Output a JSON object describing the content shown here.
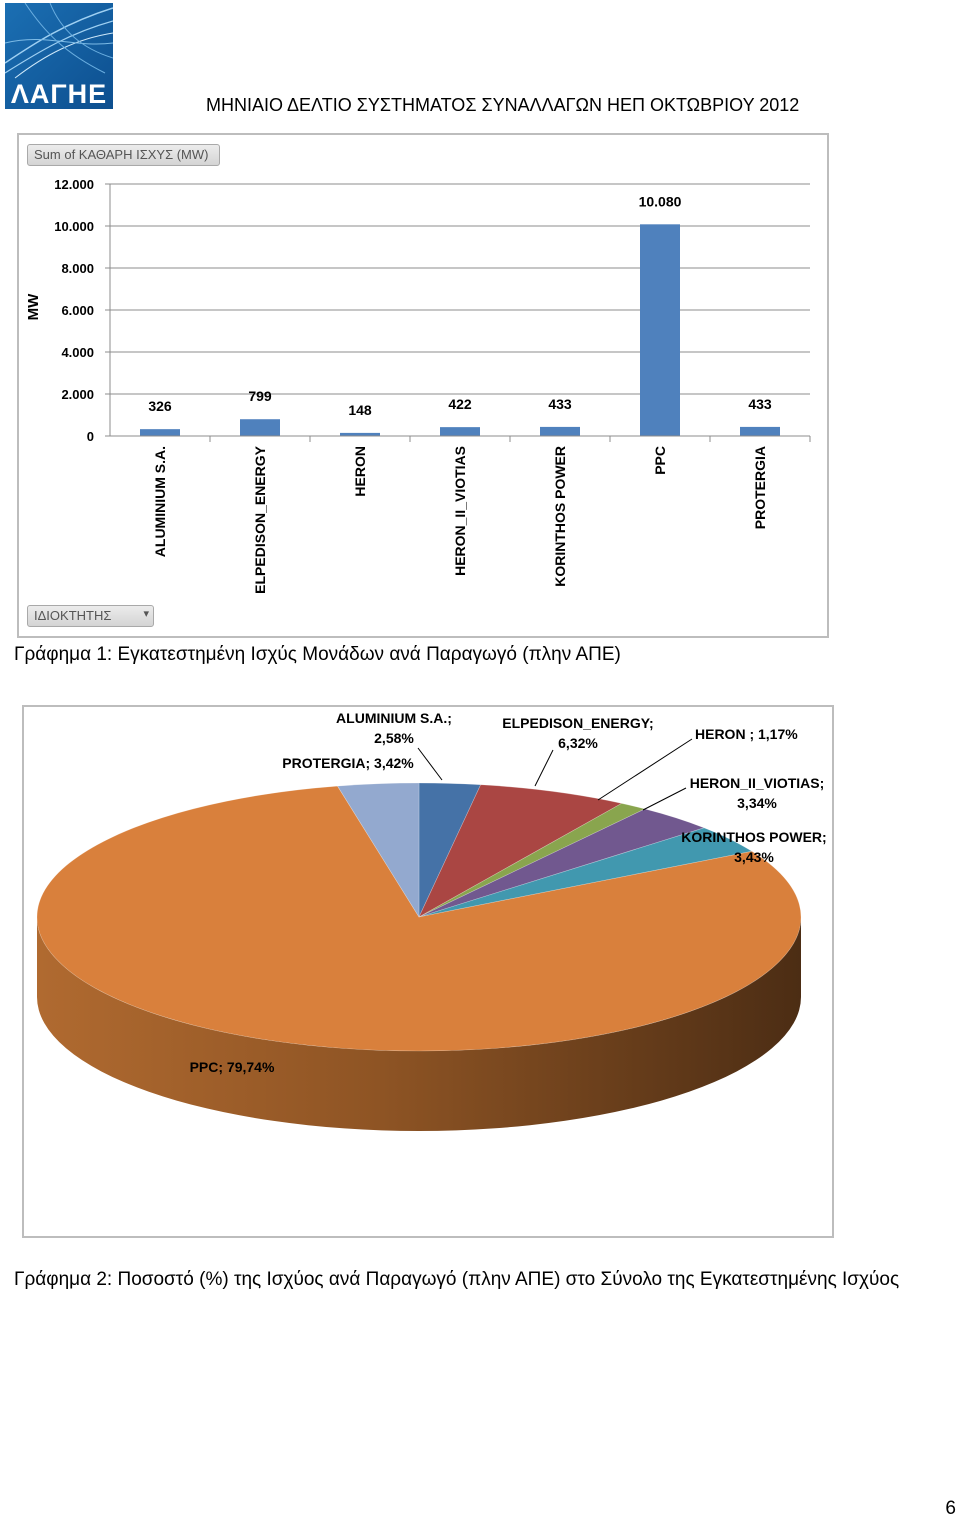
{
  "header": {
    "logo_text": "ΛΑΓΗΕ",
    "title": "ΜΗΝΙΑΙΟ ΔΕΛΤΙΟ ΣΥΣΤΗΜΑΤΟΣ ΣΥΝΑΛΛΑΓΩΝ ΗΕΠ ΟΚΤΩΒΡΙΟΥ 2012"
  },
  "bar_chart": {
    "field_button": "Sum of ΚΑΘΑΡΗ ΙΣΧΥΣ (MW)",
    "filter_button": "ΙΔΙΟΚΤΗΤΗΣ",
    "caption": "Γράφημα 1: Εγκατεστημένη Ισχύς Μονάδων ανά Παραγωγό (πλην ΑΠΕ)"
  },
  "pie_chart": {
    "caption": "Γράφημα 2: Ποσοστό (%) της Ισχύος ανά Παραγωγό (πλην ΑΠΕ) στο Σύνολο της Εγκατεστημένης Ισχύος"
  },
  "page_number": "6",
  "chart_data": [
    {
      "type": "bar",
      "ylabel": "MW",
      "xlabel": "",
      "ylim": [
        0,
        12000
      ],
      "yticks": [
        0,
        2000,
        4000,
        6000,
        8000,
        10000,
        12000
      ],
      "ytick_labels": [
        "0",
        "2.000",
        "4.000",
        "6.000",
        "8.000",
        "10.000",
        "12.000"
      ],
      "categories": [
        "ALUMINIUM S.A.",
        "ELPEDISON_ENERGY",
        "HERON",
        "HERON_II_VIOTIAS",
        "KORINTHOS POWER",
        "PPC",
        "PROTERGIA"
      ],
      "values": [
        326,
        799,
        148,
        422,
        433,
        10080,
        433
      ],
      "value_labels": [
        "326",
        "799",
        "148",
        "422",
        "433",
        "10.080",
        "433"
      ],
      "color": "#4f81bd",
      "grid": true
    },
    {
      "type": "pie",
      "slices": [
        {
          "name": "ALUMINIUM S.A.",
          "value": 2.58,
          "label_lines": [
            "ALUMINIUM S.A.;",
            "2,58%"
          ],
          "color": "#4572a7"
        },
        {
          "name": "ELPEDISON_ENERGY",
          "value": 6.32,
          "label_lines": [
            "ELPEDISON_ENERGY;",
            "6,32%"
          ],
          "color": "#aa4643"
        },
        {
          "name": "HERON",
          "value": 1.17,
          "label_lines": [
            "HERON ; 1,17%"
          ],
          "color": "#89a54e"
        },
        {
          "name": "HERON_II_VIOTIAS",
          "value": 3.34,
          "label_lines": [
            "HERON_II_VIOTIAS;",
            "3,34%"
          ],
          "color": "#71588f"
        },
        {
          "name": "KORINTHOS POWER",
          "value": 3.43,
          "label_lines": [
            "KORINTHOS POWER;",
            "3,43%"
          ],
          "color": "#4198af"
        },
        {
          "name": "PPC",
          "value": 79.74,
          "label_lines": [
            "PPC; 79,74%"
          ],
          "color": "#d9803c"
        },
        {
          "name": "PROTERGIA",
          "value": 3.42,
          "label_lines": [
            "PROTERGIA; 3,42%"
          ],
          "color": "#93a9cf"
        }
      ]
    }
  ]
}
